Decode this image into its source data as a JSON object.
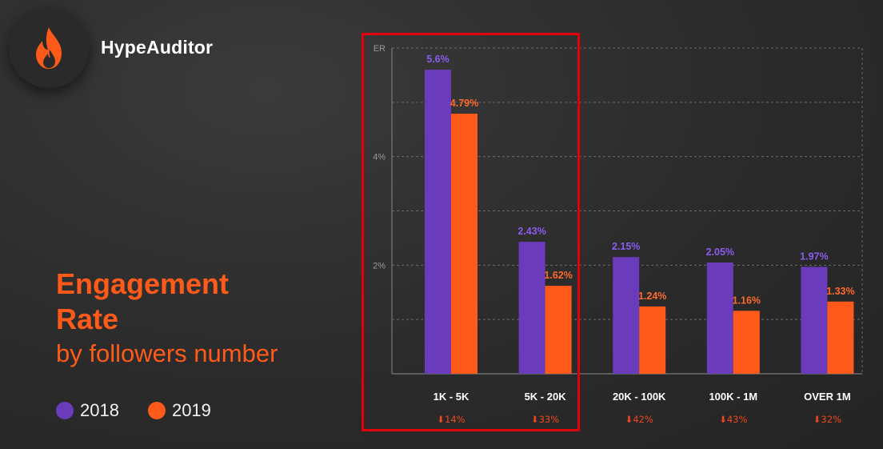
{
  "brand": {
    "name": "HypeAuditor",
    "icon": "flame-icon",
    "accent_color": "#ff5a1a"
  },
  "title": {
    "line1": "Engagement",
    "line2": "Rate",
    "subtitle": "by followers number"
  },
  "legend": [
    {
      "label": "2018",
      "color": "#6a3cbc"
    },
    {
      "label": "2019",
      "color": "#ff5a1a"
    }
  ],
  "chart_data": {
    "type": "bar",
    "ylabel": "ER",
    "ylim": [
      0,
      6
    ],
    "yticks": [
      {
        "value": 2,
        "label": "2%"
      },
      {
        "value": 4,
        "label": "4%"
      }
    ],
    "gridlines": [
      1,
      2,
      3,
      4,
      5,
      6
    ],
    "grid": true,
    "categories": [
      "1K - 5K",
      "5K - 20K",
      "20K - 100K",
      "100K - 1M",
      "OVER 1M"
    ],
    "series": [
      {
        "name": "2018",
        "color": "#6a3cbc",
        "label_color": "#8a5cf0",
        "values": [
          5.6,
          2.43,
          2.15,
          2.05,
          1.97
        ],
        "labels": [
          "5.6%",
          "2.43%",
          "2.15%",
          "2.05%",
          "1.97%"
        ]
      },
      {
        "name": "2019",
        "color": "#ff5a1a",
        "label_color": "#ff6a2a",
        "values": [
          4.79,
          1.62,
          1.24,
          1.16,
          1.33
        ],
        "labels": [
          "4.79%",
          "1.62%",
          "1.24%",
          "1.16%",
          "1.33%"
        ]
      }
    ],
    "changes": [
      "⬇14%",
      "⬇33%",
      "⬇42%",
      "⬇43%",
      "⬇32%"
    ],
    "change_color": "#f0461e",
    "highlight": {
      "categories": [
        "1K - 5K",
        "5K - 20K"
      ],
      "color": "#e3000b"
    }
  }
}
